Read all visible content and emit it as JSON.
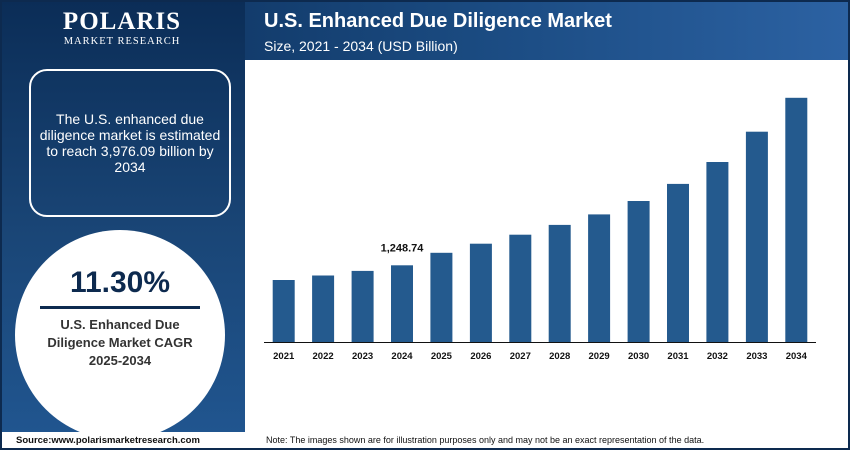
{
  "brand": {
    "logo_main": "POLARIS",
    "logo_sub": "MARKET RESEARCH"
  },
  "header": {
    "title": "U.S. Enhanced Due Diligence Market",
    "subtitle": "Size, 2021 - 2034 (USD Billion)"
  },
  "info": {
    "text": "The U.S. enhanced due diligence market is estimated to reach 3,976.09 billion by 2034"
  },
  "cagr": {
    "value": "11.30%",
    "label": "U.S. Enhanced Due Diligence Market CAGR 2025-2034"
  },
  "footer": {
    "source": "Source:www.polarismarketresearch.com",
    "note": "Note: The images shown are for illustration purposes only and may not be an exact representation of the data."
  },
  "colors": {
    "bar": "#245a8e",
    "axis": "#111111",
    "header_dark": "#0b2d57"
  },
  "chart_data": {
    "type": "bar",
    "title": "U.S. Enhanced Due Diligence Market",
    "subtitle": "Size, 2021 - 2034 (USD Billion)",
    "xlabel": "",
    "ylabel": "",
    "categories": [
      "2021",
      "2022",
      "2023",
      "2024",
      "2025",
      "2026",
      "2027",
      "2028",
      "2029",
      "2030",
      "2031",
      "2032",
      "2033",
      "2034"
    ],
    "values": [
      1010,
      1083,
      1158,
      1248.74,
      1452,
      1600,
      1747,
      1907,
      2078,
      2296,
      2574,
      2931,
      3424,
      3976.09
    ],
    "data_labels": [
      {
        "index": 3,
        "text": "1,248.74"
      }
    ],
    "ylim": [
      0,
      4200
    ],
    "grid": false,
    "legend": "none"
  }
}
